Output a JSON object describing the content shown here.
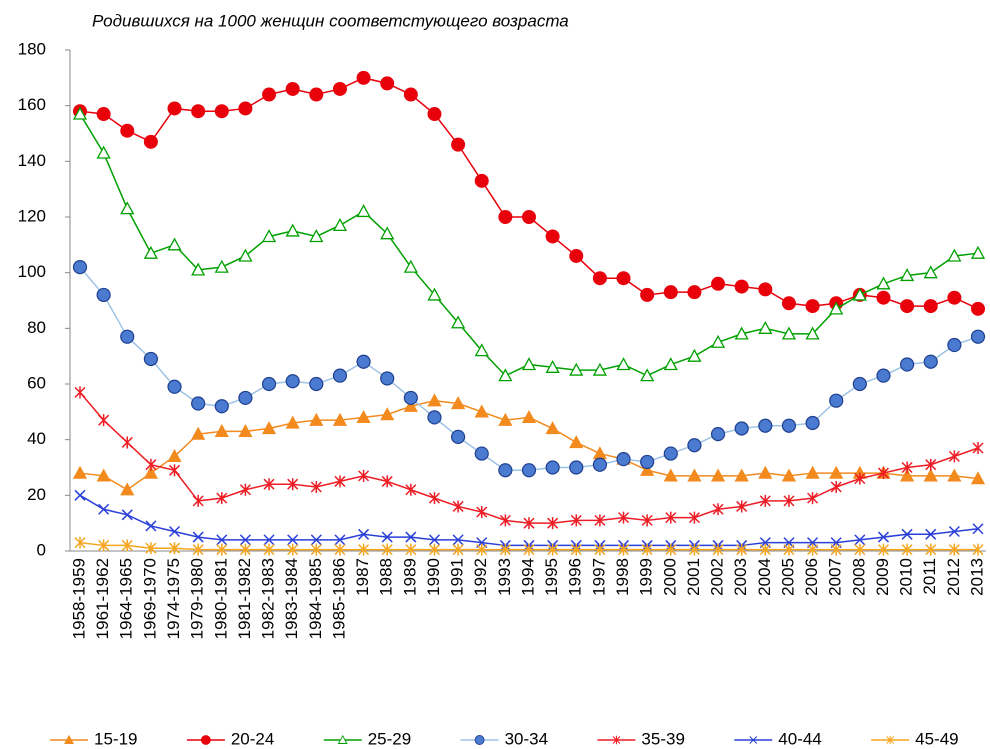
{
  "chart_data": {
    "type": "line",
    "title": "Родившихся на 1000 женщин соответстующего возраста",
    "categories": [
      "1958-1959",
      "1961-1962",
      "1964-1965",
      "1969-1970",
      "1974-1975",
      "1979-1980",
      "1980-1981",
      "1981-1982",
      "1982-1983",
      "1983-1984",
      "1984-1985",
      "1985-1986",
      "1987",
      "1988",
      "1989",
      "1990",
      "1991",
      "1992",
      "1993",
      "1994",
      "1995",
      "1996",
      "1997",
      "1998",
      "1999",
      "2000",
      "2001",
      "2002",
      "2003",
      "2004",
      "2005",
      "2006",
      "2007",
      "2008",
      "2009",
      "2010",
      "2011",
      "2012",
      "2013"
    ],
    "ylim": [
      0,
      180
    ],
    "yticks": [
      0,
      20,
      40,
      60,
      80,
      100,
      120,
      140,
      160,
      180
    ],
    "grid": false,
    "legend": "bottom",
    "series": [
      {
        "name": "15-19",
        "color": "#f28a1e",
        "marker": "triangle-filled",
        "values": [
          28,
          27,
          22,
          28,
          34,
          42,
          43,
          43,
          44,
          46,
          47,
          47,
          48,
          49,
          52,
          54,
          53,
          50,
          47,
          48,
          44,
          39,
          35,
          33,
          29,
          27,
          27,
          27,
          27,
          28,
          27,
          28,
          28,
          28,
          28,
          27,
          27,
          27,
          26
        ]
      },
      {
        "name": "20-24",
        "color": "#e8000b",
        "marker": "circle-filled",
        "values": [
          158,
          157,
          151,
          147,
          159,
          158,
          158,
          159,
          164,
          166,
          164,
          166,
          170,
          168,
          164,
          157,
          146,
          133,
          120,
          120,
          113,
          106,
          98,
          98,
          92,
          93,
          93,
          96,
          95,
          94,
          89,
          88,
          89,
          92,
          91,
          88,
          88,
          91,
          87
        ]
      },
      {
        "name": "25-29",
        "color": "#00a000",
        "marker": "triangle-open",
        "values": [
          157,
          143,
          123,
          107,
          110,
          101,
          102,
          106,
          113,
          115,
          113,
          117,
          122,
          114,
          102,
          92,
          82,
          72,
          63,
          67,
          66,
          65,
          65,
          67,
          63,
          67,
          70,
          75,
          78,
          80,
          78,
          78,
          87,
          92,
          96,
          99,
          100,
          106,
          107
        ]
      },
      {
        "name": "30-34",
        "color": "#9dc3e6",
        "marker": "circle-blue",
        "values": [
          102,
          92,
          77,
          69,
          59,
          53,
          52,
          55,
          60,
          61,
          60,
          63,
          68,
          62,
          55,
          48,
          41,
          35,
          29,
          29,
          30,
          30,
          31,
          33,
          32,
          35,
          38,
          42,
          44,
          45,
          45,
          46,
          54,
          60,
          63,
          67,
          68,
          74,
          77
        ]
      },
      {
        "name": "35-39",
        "color": "#ee1c24",
        "marker": "star",
        "values": [
          57,
          47,
          39,
          31,
          29,
          18,
          19,
          22,
          24,
          24,
          23,
          25,
          27,
          25,
          22,
          19,
          16,
          14,
          11,
          10,
          10,
          11,
          11,
          12,
          11,
          12,
          12,
          15,
          16,
          18,
          18,
          19,
          23,
          26,
          28,
          30,
          31,
          34,
          37
        ]
      },
      {
        "name": "40-44",
        "color": "#2a3fd8",
        "marker": "cross",
        "values": [
          20,
          15,
          13,
          9,
          7,
          5,
          4,
          4,
          4,
          4,
          4,
          4,
          6,
          5,
          5,
          4,
          4,
          3,
          2,
          2,
          2,
          2,
          2,
          2,
          2,
          2,
          2,
          2,
          2,
          3,
          3,
          3,
          3,
          4,
          5,
          6,
          6,
          7,
          8
        ]
      },
      {
        "name": "45-49",
        "color": "#f5a51e",
        "marker": "star",
        "values": [
          3,
          2,
          2,
          1,
          1,
          0.5,
          0.5,
          0.5,
          0.5,
          0.5,
          0.5,
          0.5,
          0.5,
          0.5,
          0.5,
          0.5,
          0.5,
          0.5,
          0.5,
          0.5,
          0.5,
          0.5,
          0.5,
          0.5,
          0.5,
          0.5,
          0.5,
          0.5,
          0.5,
          0.5,
          0.5,
          0.5,
          0.5,
          0.5,
          0.5,
          0.5,
          0.5,
          0.5,
          0.5
        ]
      }
    ]
  }
}
